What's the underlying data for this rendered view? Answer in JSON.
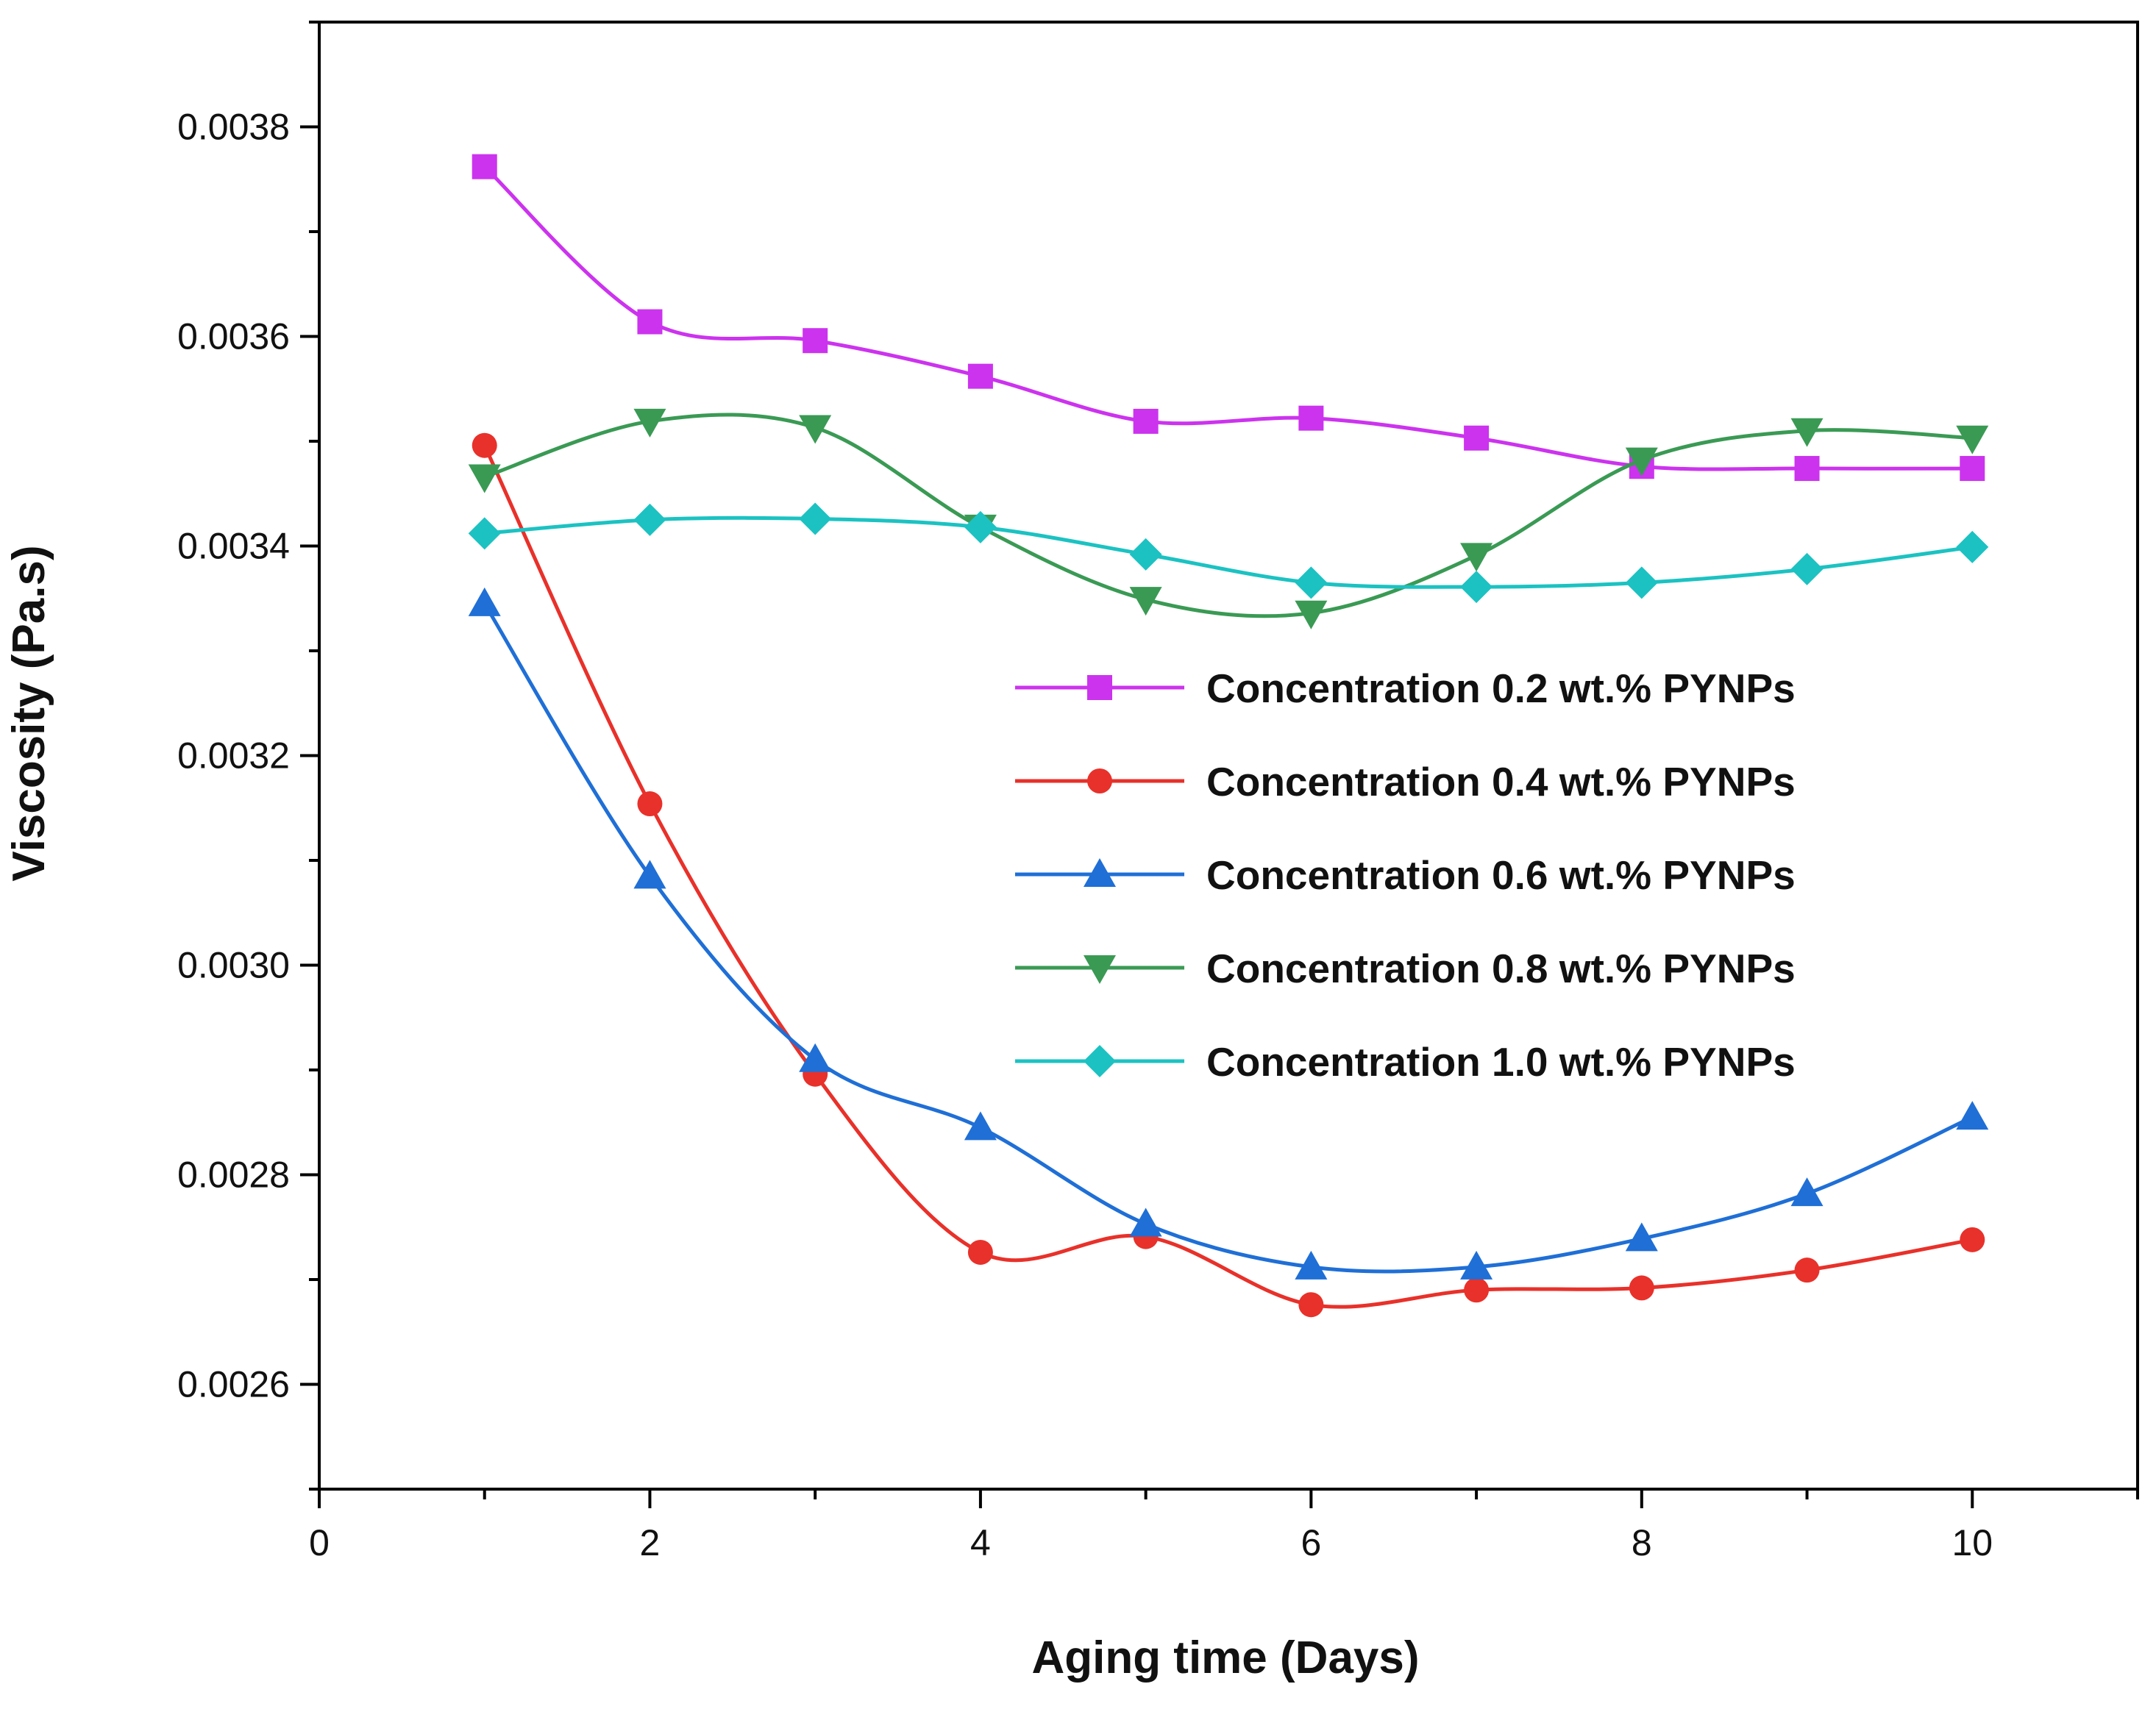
{
  "chart_data": {
    "type": "line",
    "title": "",
    "xlabel": "Aging time (Days)",
    "ylabel": "Viscosity (Pa.s)",
    "xlim": [
      0,
      11
    ],
    "ylim": [
      0.0025,
      0.0039
    ],
    "xticks": [
      0,
      2,
      4,
      6,
      8,
      10
    ],
    "xtick_labels": [
      "0",
      "2",
      "4",
      "6",
      "8",
      "10"
    ],
    "yticks": [
      0.0026,
      0.0028,
      0.003,
      0.0032,
      0.0034,
      0.0036,
      0.0038
    ],
    "ytick_labels": [
      "0.0026",
      "0.0028",
      "0.0030",
      "0.0032",
      "0.0034",
      "0.0036",
      "0.0038"
    ],
    "grid": false,
    "legend_position": "right-center",
    "x": [
      1,
      2,
      3,
      4,
      5,
      6,
      7,
      8,
      9,
      10
    ],
    "series": [
      {
        "name": "Concentration 0.2 wt.% PYNPs",
        "color": "#cc33ee",
        "marker": "square",
        "values": [
          0.003762,
          0.003614,
          0.003596,
          0.003562,
          0.003519,
          0.003522,
          0.003503,
          0.003476,
          0.003474,
          0.003474
        ]
      },
      {
        "name": "Concentration 0.4 wt.% PYNPs",
        "color": "#e8312a",
        "marker": "circle",
        "values": [
          0.003496,
          0.003154,
          0.002896,
          0.002726,
          0.002741,
          0.002676,
          0.00269,
          0.002692,
          0.002709,
          0.002738
        ]
      },
      {
        "name": "Concentration 0.6 wt.% PYNPs",
        "color": "#1f6fd6",
        "marker": "triangle-up",
        "values": [
          0.003345,
          0.003085,
          0.00291,
          0.002845,
          0.002753,
          0.002712,
          0.002712,
          0.002739,
          0.002782,
          0.002855
        ]
      },
      {
        "name": "Concentration 0.8 wt.% PYNPs",
        "color": "#3a9a54",
        "marker": "triangle-down",
        "values": [
          0.003466,
          0.003519,
          0.003513,
          0.003418,
          0.003349,
          0.003336,
          0.003391,
          0.003482,
          0.00351,
          0.003503
        ]
      },
      {
        "name": "Concentration 1.0 wt.% PYNPs",
        "color": "#1cc2c2",
        "marker": "diamond",
        "values": [
          0.003412,
          0.003425,
          0.003426,
          0.003418,
          0.003392,
          0.003365,
          0.003361,
          0.003365,
          0.003378,
          0.003399
        ]
      }
    ]
  }
}
